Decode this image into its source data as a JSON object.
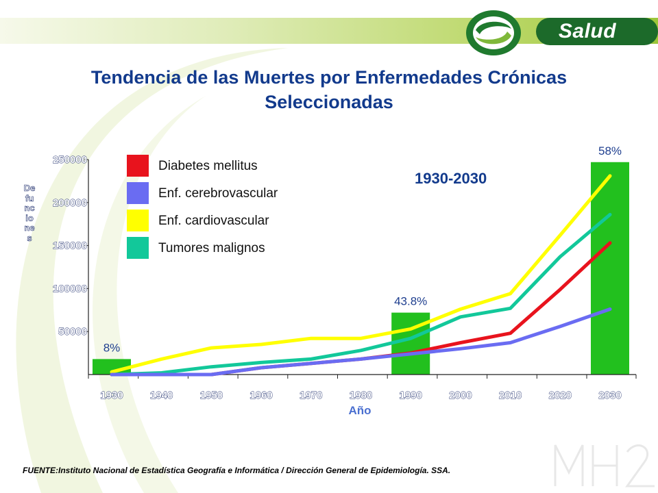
{
  "header": {
    "logo_text": "Salud",
    "title": "Tendencia de las Muertes por Enfermedades Crónicas Seleccionadas"
  },
  "colors": {
    "bar": "#22c01e",
    "diabetes": "#e8131d",
    "cerebrovascular": "#6a6cf2",
    "cardiovascular": "#ffff00",
    "tumores": "#12c89a",
    "title": "#123a8c",
    "axis_label": "#4a6fd0"
  },
  "period_label": "1930-2030",
  "source": "FUENTE:Instituto Nacional de Estadística Geografía e Informática / Dirección General de Epidemiología. SSA.",
  "chart_data": {
    "type": "line",
    "xlabel": "Año",
    "ylabel": "Defunciones",
    "ylim": [
      0,
      250000
    ],
    "yticks": [
      50000,
      100000,
      150000,
      200000,
      250000
    ],
    "categories": [
      "1930",
      "1940",
      "1950",
      "1960",
      "1970",
      "1980",
      "1990",
      "2000",
      "2010",
      "2020",
      "2030"
    ],
    "series": [
      {
        "name": "Diabetes mellitus",
        "color": "#e8131d",
        "values": [
          0,
          0,
          0,
          8000,
          13000,
          18000,
          25000,
          37000,
          48000,
          99000,
          153000
        ]
      },
      {
        "name": "Enf. cerebrovascular",
        "color": "#6a6cf2",
        "values": [
          0,
          0,
          0,
          8000,
          13000,
          18000,
          24000,
          30000,
          37000,
          56000,
          76000
        ]
      },
      {
        "name": "Enf. cardiovascular",
        "color": "#ffff00",
        "values": [
          3000,
          18000,
          31000,
          35000,
          42000,
          42000,
          53000,
          76000,
          94000,
          162000,
          231000
        ]
      },
      {
        "name": "Tumores malignos",
        "color": "#12c89a",
        "values": [
          0,
          2000,
          9000,
          14000,
          18000,
          28000,
          42000,
          67000,
          77000,
          137000,
          186000
        ]
      }
    ],
    "bars": [
      {
        "x": "1930",
        "label": "8%",
        "value": 18000
      },
      {
        "x": "1990",
        "label": "43.8%",
        "value": 72000
      },
      {
        "x": "2030",
        "label": "58%",
        "value": 247000
      }
    ],
    "legend_position": "top-left"
  }
}
